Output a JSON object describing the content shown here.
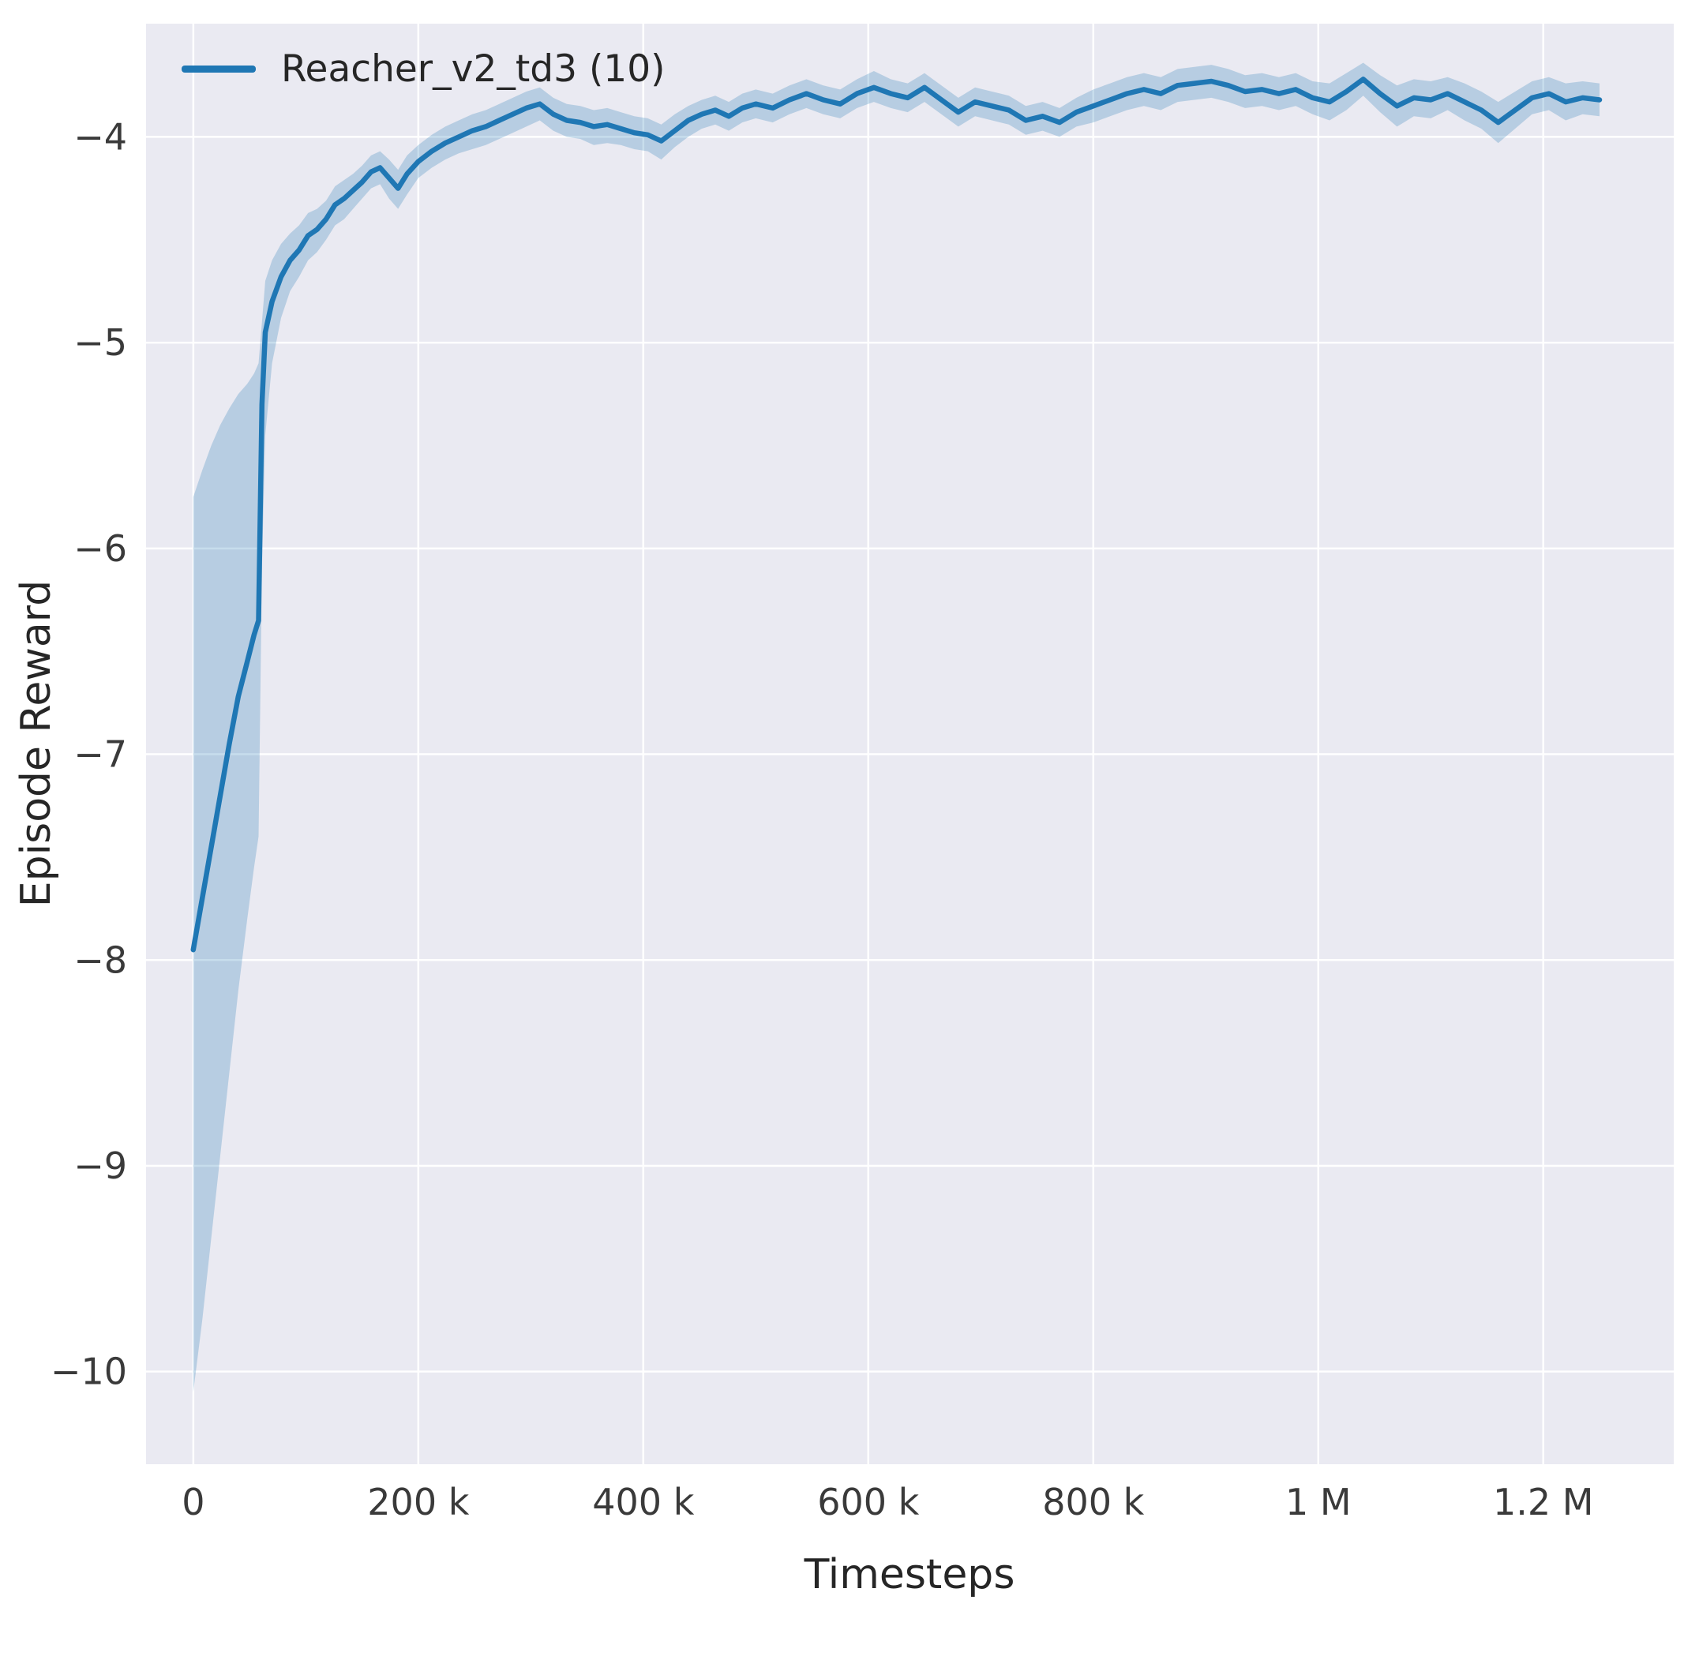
{
  "chart_data": {
    "type": "line",
    "title": "",
    "xlabel": "Timesteps",
    "ylabel": "Episode Reward",
    "grid": true,
    "legend_position": "upper left",
    "background": "#eaeaf2",
    "gridline_color": "#ffffff",
    "tick_label_color": "#3a3a3a",
    "xlim": [
      -42000,
      1316000
    ],
    "ylim": [
      -10.45,
      -3.45
    ],
    "x_ticks": {
      "values": [
        0,
        200000,
        400000,
        600000,
        800000,
        1000000,
        1200000
      ],
      "labels": [
        "0",
        "200 k",
        "400 k",
        "600 k",
        "800 k",
        "1 M",
        "1.2 M"
      ]
    },
    "y_ticks": {
      "values": [
        -4,
        -5,
        -6,
        -7,
        -8,
        -9,
        -10
      ],
      "labels": [
        "−4",
        "−5",
        "−6",
        "−7",
        "−8",
        "−9",
        "−10"
      ]
    },
    "series": [
      {
        "name": "Reacher_v2_td3 (10)",
        "color": "#1f77b4",
        "band_opacity": 0.25,
        "x": [
          0,
          8000,
          16000,
          24000,
          32000,
          40000,
          48000,
          54000,
          58000,
          61000,
          64000,
          70000,
          78000,
          86000,
          94000,
          102000,
          110000,
          118000,
          126000,
          134000,
          142000,
          150000,
          158000,
          166000,
          174000,
          182000,
          190000,
          200000,
          212000,
          224000,
          236000,
          248000,
          260000,
          272000,
          284000,
          296000,
          308000,
          320000,
          332000,
          344000,
          356000,
          368000,
          380000,
          392000,
          404000,
          416000,
          428000,
          440000,
          452000,
          464000,
          476000,
          488000,
          500000,
          515000,
          530000,
          545000,
          560000,
          575000,
          590000,
          605000,
          620000,
          635000,
          650000,
          665000,
          680000,
          695000,
          710000,
          725000,
          740000,
          755000,
          770000,
          785000,
          800000,
          815000,
          830000,
          845000,
          860000,
          875000,
          890000,
          905000,
          920000,
          935000,
          950000,
          965000,
          980000,
          995000,
          1010000,
          1025000,
          1040000,
          1055000,
          1070000,
          1085000,
          1100000,
          1115000,
          1130000,
          1145000,
          1160000,
          1175000,
          1190000,
          1205000,
          1220000,
          1235000,
          1250000
        ],
        "mean": [
          -7.95,
          -7.7,
          -7.45,
          -7.2,
          -6.95,
          -6.72,
          -6.55,
          -6.42,
          -6.35,
          -5.3,
          -4.95,
          -4.8,
          -4.68,
          -4.6,
          -4.55,
          -4.48,
          -4.45,
          -4.4,
          -4.33,
          -4.3,
          -4.26,
          -4.22,
          -4.17,
          -4.15,
          -4.2,
          -4.25,
          -4.18,
          -4.12,
          -4.07,
          -4.03,
          -4.0,
          -3.97,
          -3.95,
          -3.92,
          -3.89,
          -3.86,
          -3.84,
          -3.89,
          -3.92,
          -3.93,
          -3.95,
          -3.94,
          -3.96,
          -3.98,
          -3.99,
          -4.02,
          -3.97,
          -3.92,
          -3.89,
          -3.87,
          -3.9,
          -3.86,
          -3.84,
          -3.86,
          -3.82,
          -3.79,
          -3.82,
          -3.84,
          -3.79,
          -3.76,
          -3.79,
          -3.81,
          -3.76,
          -3.82,
          -3.88,
          -3.83,
          -3.85,
          -3.87,
          -3.92,
          -3.9,
          -3.93,
          -3.88,
          -3.85,
          -3.82,
          -3.79,
          -3.77,
          -3.79,
          -3.75,
          -3.74,
          -3.73,
          -3.75,
          -3.78,
          -3.77,
          -3.79,
          -3.77,
          -3.81,
          -3.83,
          -3.78,
          -3.72,
          -3.79,
          -3.85,
          -3.81,
          -3.82,
          -3.79,
          -3.83,
          -3.87,
          -3.93,
          -3.87,
          -3.81,
          -3.79,
          -3.83,
          -3.81,
          -3.82
        ],
        "band_lower": [
          -10.1,
          -9.75,
          -9.35,
          -8.95,
          -8.55,
          -8.15,
          -7.8,
          -7.55,
          -7.4,
          -6.1,
          -5.45,
          -5.1,
          -4.88,
          -4.75,
          -4.68,
          -4.6,
          -4.56,
          -4.5,
          -4.43,
          -4.4,
          -4.35,
          -4.3,
          -4.25,
          -4.23,
          -4.3,
          -4.35,
          -4.28,
          -4.2,
          -4.15,
          -4.11,
          -4.08,
          -4.06,
          -4.04,
          -4.01,
          -3.98,
          -3.95,
          -3.92,
          -3.97,
          -4.0,
          -4.01,
          -4.04,
          -4.03,
          -4.04,
          -4.06,
          -4.07,
          -4.11,
          -4.05,
          -4.0,
          -3.96,
          -3.94,
          -3.97,
          -3.93,
          -3.91,
          -3.93,
          -3.89,
          -3.86,
          -3.89,
          -3.91,
          -3.86,
          -3.83,
          -3.86,
          -3.88,
          -3.83,
          -3.89,
          -3.95,
          -3.9,
          -3.92,
          -3.94,
          -3.99,
          -3.97,
          -4.0,
          -3.95,
          -3.93,
          -3.9,
          -3.87,
          -3.85,
          -3.87,
          -3.83,
          -3.82,
          -3.81,
          -3.83,
          -3.86,
          -3.85,
          -3.87,
          -3.85,
          -3.89,
          -3.92,
          -3.87,
          -3.8,
          -3.88,
          -3.95,
          -3.9,
          -3.91,
          -3.87,
          -3.92,
          -3.96,
          -4.03,
          -3.96,
          -3.89,
          -3.87,
          -3.92,
          -3.89,
          -3.9
        ],
        "band_upper": [
          -5.75,
          -5.62,
          -5.5,
          -5.4,
          -5.32,
          -5.25,
          -5.2,
          -5.15,
          -5.1,
          -4.9,
          -4.7,
          -4.6,
          -4.52,
          -4.47,
          -4.43,
          -4.37,
          -4.35,
          -4.31,
          -4.24,
          -4.21,
          -4.18,
          -4.14,
          -4.09,
          -4.07,
          -4.11,
          -4.16,
          -4.09,
          -4.04,
          -3.99,
          -3.95,
          -3.92,
          -3.89,
          -3.87,
          -3.84,
          -3.81,
          -3.78,
          -3.76,
          -3.81,
          -3.84,
          -3.85,
          -3.87,
          -3.86,
          -3.88,
          -3.9,
          -3.91,
          -3.94,
          -3.89,
          -3.85,
          -3.82,
          -3.8,
          -3.83,
          -3.79,
          -3.77,
          -3.79,
          -3.75,
          -3.72,
          -3.75,
          -3.77,
          -3.72,
          -3.68,
          -3.72,
          -3.74,
          -3.69,
          -3.75,
          -3.81,
          -3.76,
          -3.78,
          -3.8,
          -3.85,
          -3.83,
          -3.86,
          -3.81,
          -3.77,
          -3.74,
          -3.71,
          -3.69,
          -3.71,
          -3.67,
          -3.66,
          -3.65,
          -3.67,
          -3.7,
          -3.69,
          -3.71,
          -3.69,
          -3.73,
          -3.74,
          -3.69,
          -3.64,
          -3.7,
          -3.75,
          -3.72,
          -3.73,
          -3.71,
          -3.74,
          -3.78,
          -3.83,
          -3.78,
          -3.73,
          -3.71,
          -3.74,
          -3.73,
          -3.74
        ]
      }
    ]
  }
}
